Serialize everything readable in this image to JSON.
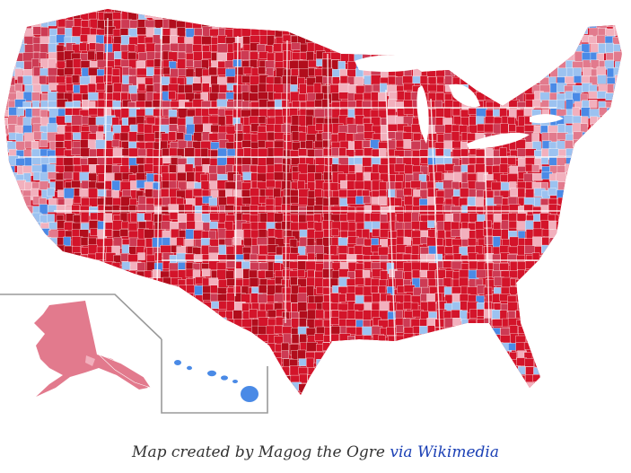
{
  "map": {
    "colors": {
      "deep_red": "#b10d1c",
      "red": "#d3142a",
      "medium_red": "#cd3b54",
      "light_red": "#e27a8d",
      "pink": "#f2b0bd",
      "light_blue": "#9cc2f0",
      "blue": "#4a8ae6",
      "dark_blue": "#1f55c8",
      "border": "#ffffff",
      "inset_line": "#9a9a9a"
    }
  },
  "caption": {
    "prefix": "Map created by Magog the Ogre",
    "via": "via",
    "link": "Wikimedia"
  }
}
